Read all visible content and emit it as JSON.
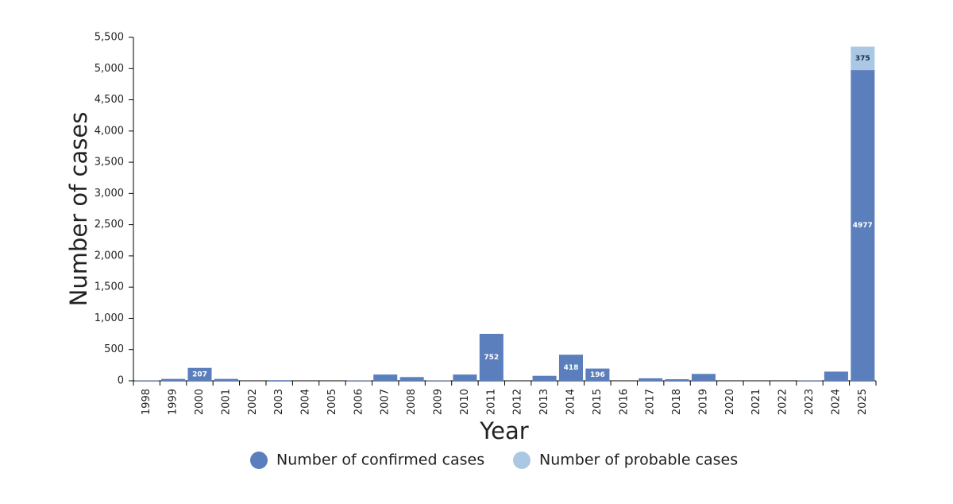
{
  "chart_data": {
    "type": "stacked_bar",
    "x_label": "Year",
    "y_label": "Number of cases",
    "categories": [
      "1998",
      "1999",
      "2000",
      "2001",
      "2002",
      "2003",
      "2004",
      "2005",
      "2006",
      "2007",
      "2008",
      "2009",
      "2010",
      "2011",
      "2012",
      "2013",
      "2014",
      "2015",
      "2016",
      "2017",
      "2018",
      "2019",
      "2020",
      "2021",
      "2022",
      "2023",
      "2024",
      "2025"
    ],
    "series": [
      {
        "name": "Number of confirmed cases",
        "color": "#5b7fbd",
        "values": [
          5,
          30,
          207,
          30,
          0,
          10,
          0,
          0,
          5,
          100,
          60,
          5,
          100,
          752,
          0,
          80,
          418,
          196,
          0,
          40,
          25,
          110,
          0,
          0,
          0,
          5,
          147,
          4977
        ]
      },
      {
        "name": "Number of probable cases",
        "color": "#aac8e4",
        "values": [
          0,
          0,
          0,
          0,
          0,
          0,
          0,
          0,
          0,
          0,
          0,
          0,
          0,
          0,
          0,
          0,
          0,
          0,
          0,
          0,
          0,
          0,
          0,
          0,
          0,
          0,
          0,
          375
        ]
      }
    ],
    "ylim": [
      0,
      5500
    ],
    "yticks": [
      0,
      500,
      {
        "value": 1000,
        "label": "1,000"
      },
      {
        "value": 1500,
        "label": "1,500"
      },
      {
        "value": 2000,
        "label": "2,000"
      },
      {
        "value": 2500,
        "label": "2,500"
      },
      {
        "value": 3000,
        "label": "3,000"
      },
      {
        "value": 3500,
        "label": "3,500"
      },
      {
        "value": 4000,
        "label": "4,000"
      },
      {
        "value": 4500,
        "label": "4,500"
      },
      {
        "value": 5000,
        "label": "5,000"
      },
      {
        "value": 5500,
        "label": "5,500"
      }
    ],
    "grid": false
  }
}
